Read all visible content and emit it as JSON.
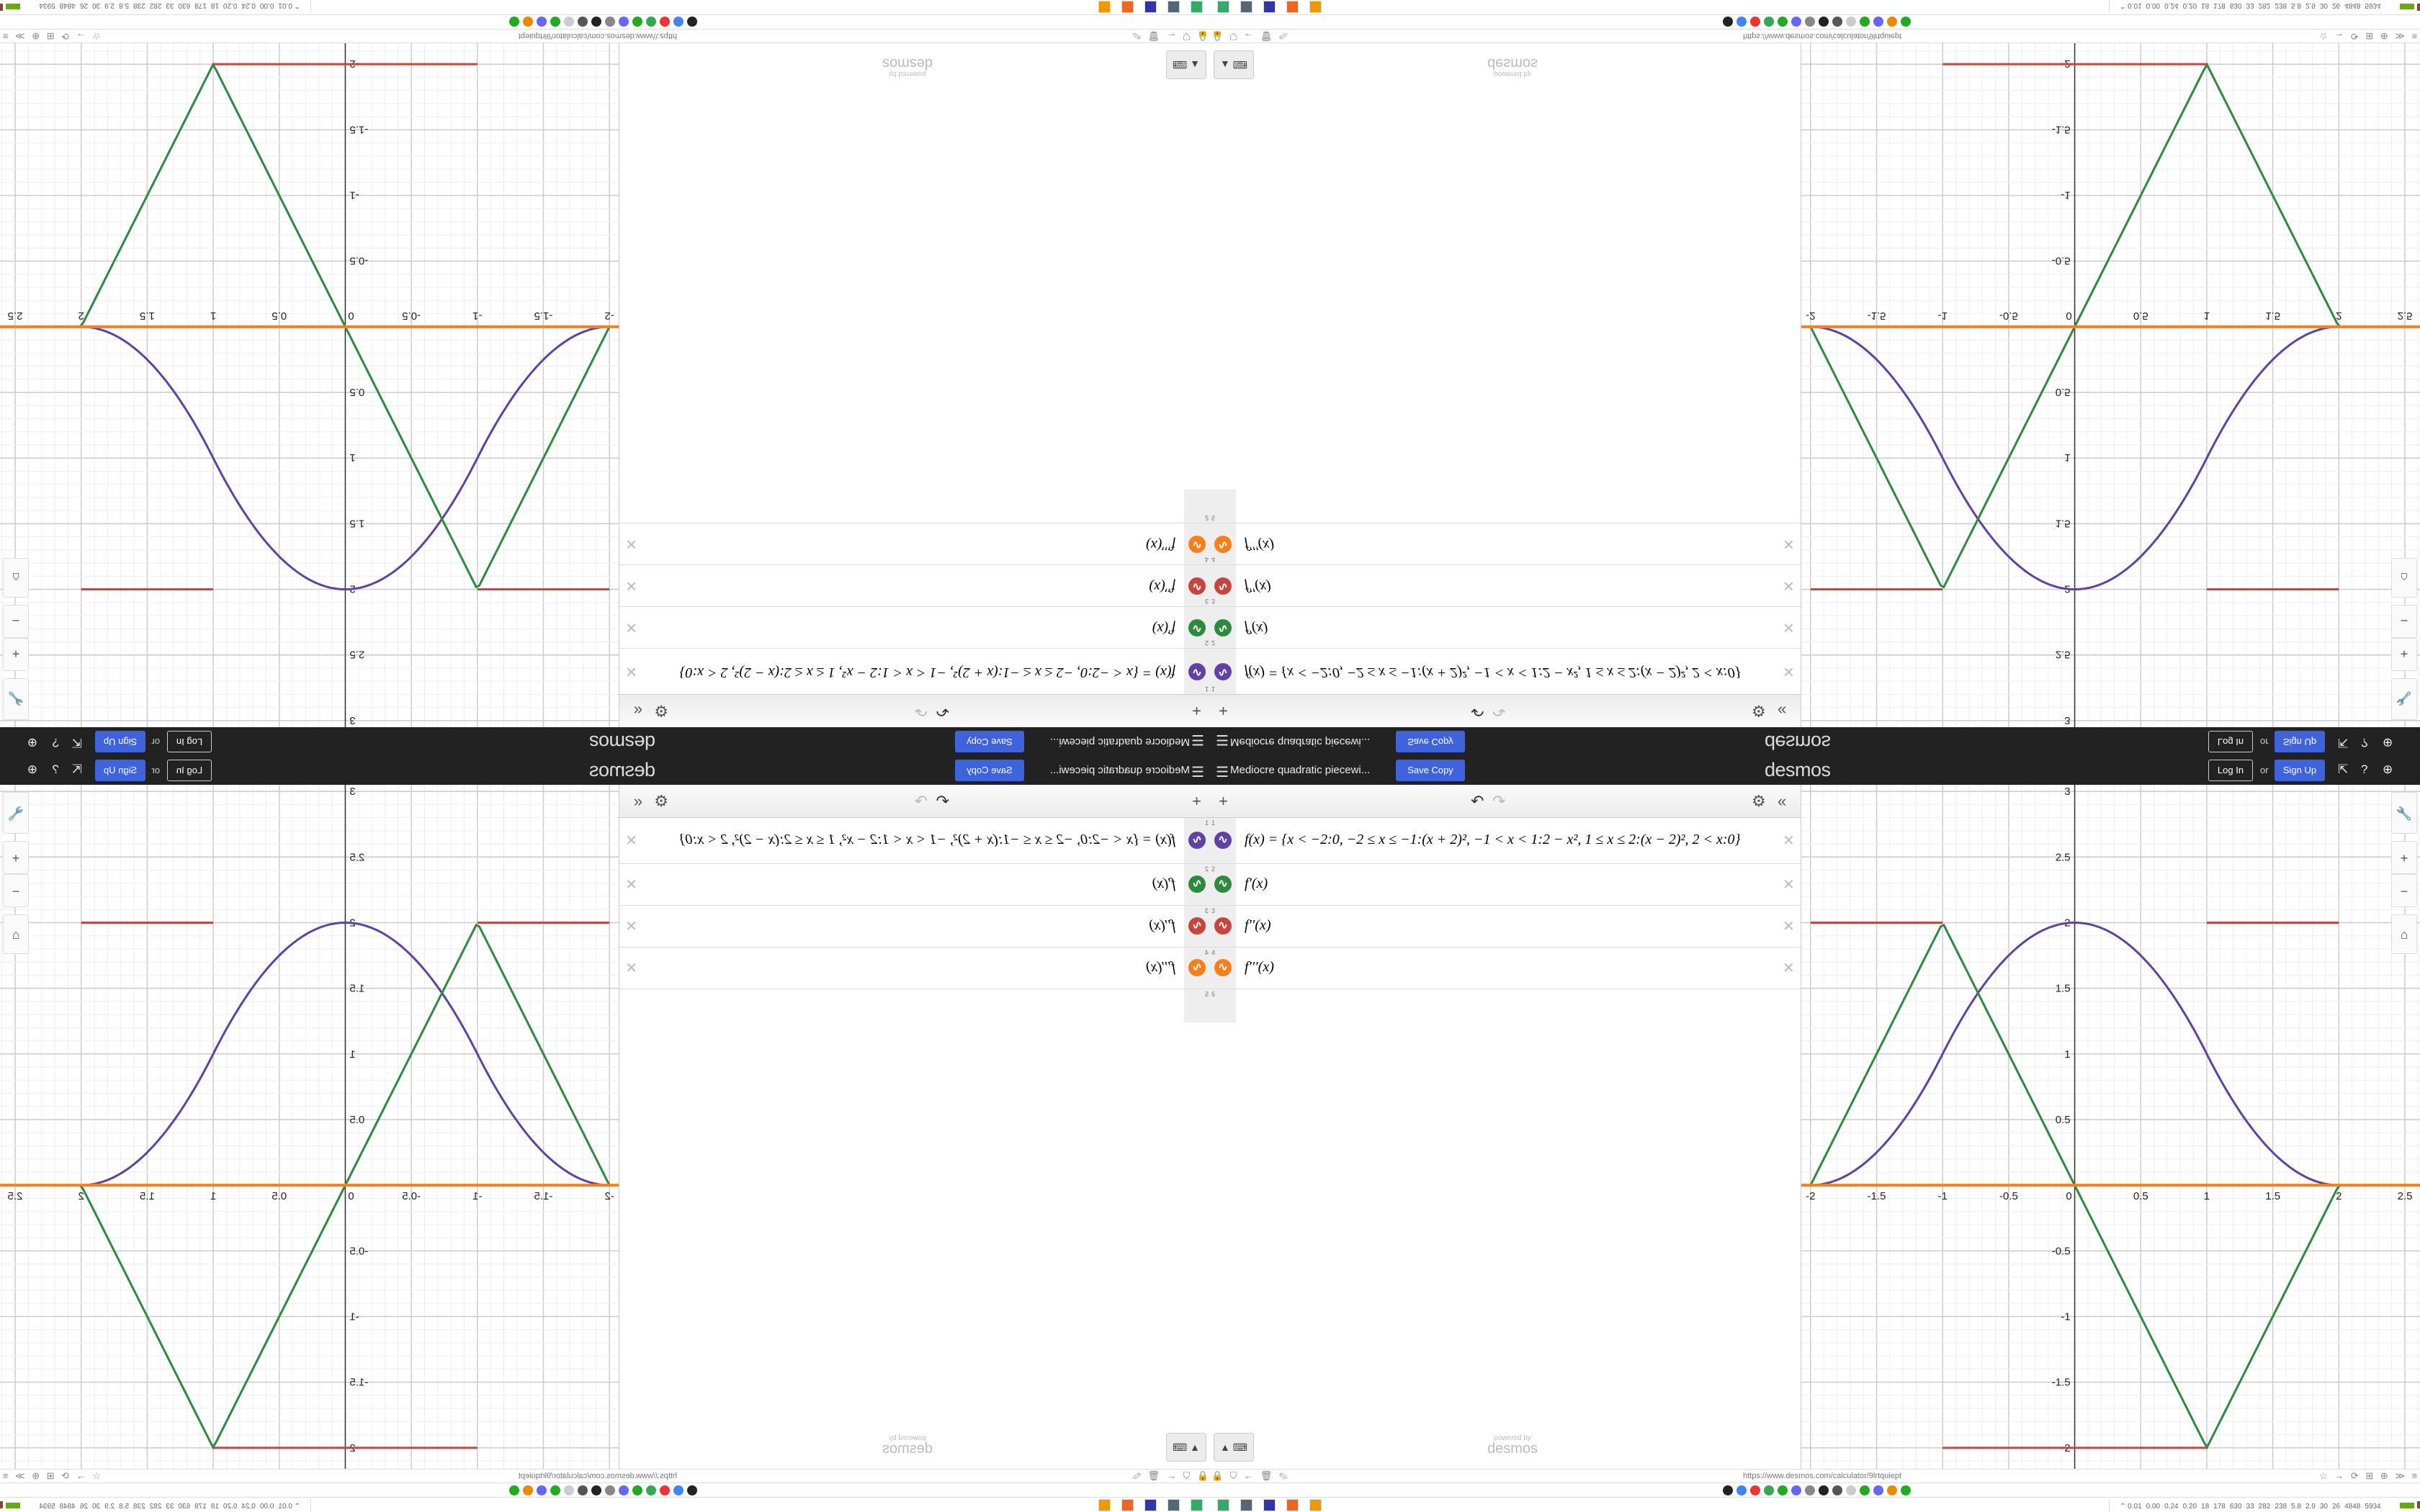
{
  "header": {
    "menu_icon": "hamburger-icon",
    "title": "Mediocre quadratic piecewi...",
    "save_copy": "Save Copy",
    "logo": "desmos",
    "log_in": "Log In",
    "or": "or",
    "sign_up": "Sign Up",
    "icons": [
      "share-icon",
      "help-icon",
      "globe-icon"
    ],
    "accent": "#3f63dd"
  },
  "toolbar": {
    "add": "+",
    "undo": "↶",
    "redo": "↷",
    "settings": "⚙",
    "collapse": "«"
  },
  "expressions": [
    {
      "num": "1",
      "color": "#6042a6",
      "latex": "f(x) = {x < −2:0, −2 ≤ x ≤ −1:(x + 2)², −1 < x < 1:2 − x², 1 ≤ x ≤ 2:(x − 2)², 2 < x:0}"
    },
    {
      "num": "2",
      "color": "#2d8a3e",
      "latex": "f′(x)"
    },
    {
      "num": "3",
      "color": "#c74440",
      "latex": "f′′(x)"
    },
    {
      "num": "4",
      "color": "#fa7e19",
      "latex": "f′′′(x)"
    },
    {
      "num": "5",
      "color": "",
      "latex": ""
    }
  ],
  "graph_controls": {
    "wrench": "🔧",
    "zoom_in": "+",
    "zoom_out": "−",
    "home": "⌂"
  },
  "keypad": {
    "label": "▲ ⌨"
  },
  "powered": {
    "line1": "powered by",
    "line2": "desmos"
  },
  "browser": {
    "url": "https://www.desmos.com/calculator/9lrtquiept",
    "left_icons": "🔒 ⛉ ← 🗑 ✎",
    "right_icons": "☆ → ⟳ ⊞ ⊕ ≫ ≡"
  },
  "bookmark_colors": [
    "#222",
    "#4285f4",
    "#e33",
    "#34a853",
    "#2a2",
    "#66f",
    "#888",
    "#222",
    "#555",
    "#ccc",
    "#2a2",
    "#66f",
    "#e80",
    "#2a2"
  ],
  "taskbar": {
    "stats": [
      "0.01",
      "0.00",
      "0.24",
      "0.20",
      "18",
      "178",
      "630",
      "33",
      "282",
      "238",
      "5.8",
      "2.9",
      "30",
      "26",
      "4848",
      "5934"
    ]
  },
  "chart_data": {
    "type": "line",
    "xlim": [
      -2.07,
      2.62
    ],
    "ylim": [
      -2.16,
      3.05
    ],
    "xticks": [
      "-2",
      "-1.5",
      "-1",
      "-0.5",
      "0",
      "0.5",
      "1",
      "1.5",
      "2",
      "2.5"
    ],
    "yticks": [
      "-2",
      "-1.5",
      "-1",
      "-0.5",
      "0.5",
      "1",
      "1.5",
      "2",
      "2.5",
      "3"
    ],
    "grid": true,
    "series": [
      {
        "name": "f(x)",
        "color": "#6042a6"
      },
      {
        "name": "f′(x)",
        "color": "#2d8a3e"
      },
      {
        "name": "f′′(x)",
        "color": "#c74440"
      },
      {
        "name": "f′′′(x)",
        "color": "#fa7e19"
      }
    ]
  }
}
